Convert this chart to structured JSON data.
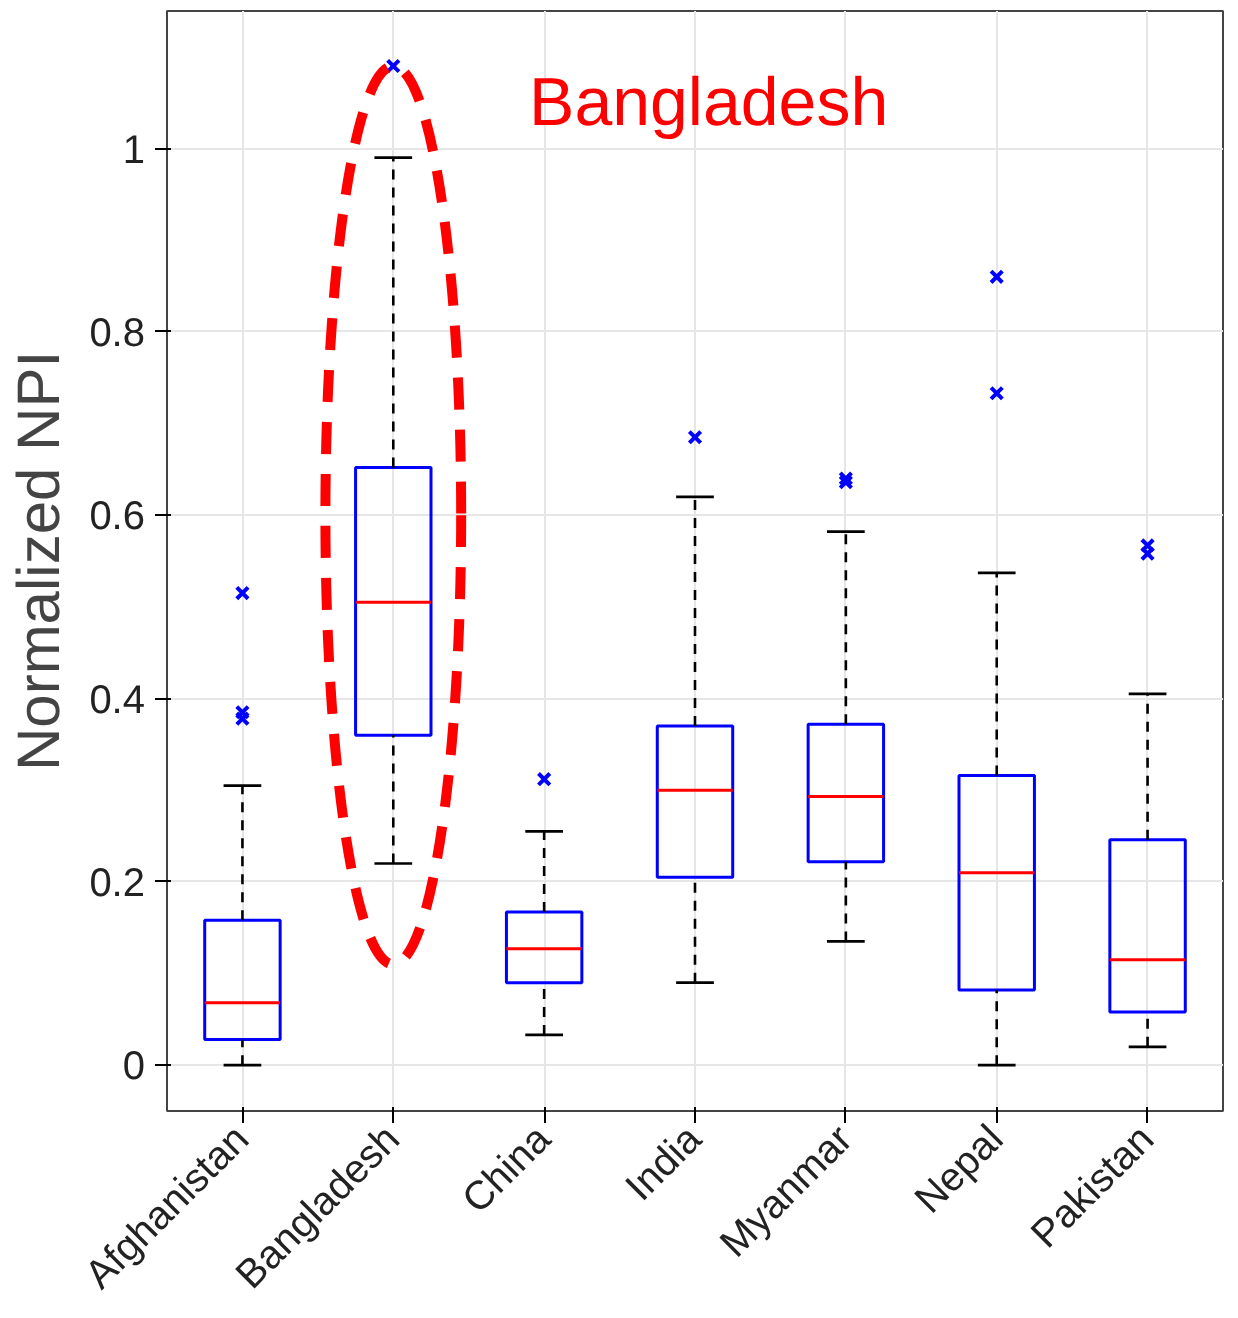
{
  "chart_data": {
    "type": "box",
    "ylabel": "Normalized NPI",
    "categories": [
      "Afghanistan",
      "Bangladesh",
      "China",
      "India",
      "Myanmar",
      "Nepal",
      "Pakistan"
    ],
    "series": [
      {
        "color": "#0000ff",
        "boxes": [
          {
            "low": 0,
            "q1": 0.028,
            "median": 0.068,
            "q3": 0.158,
            "high": 0.305,
            "outliers": [
              0.515,
              0.385,
              0.378
            ]
          },
          {
            "low": 0.22,
            "q1": 0.36,
            "median": 0.505,
            "q3": 0.652,
            "high": 0.99,
            "outliers": [
              1.09
            ]
          },
          {
            "low": 0.033,
            "q1": 0.09,
            "median": 0.127,
            "q3": 0.167,
            "high": 0.255,
            "outliers": [
              0.312
            ]
          },
          {
            "low": 0.09,
            "q1": 0.205,
            "median": 0.3,
            "q3": 0.37,
            "high": 0.62,
            "outliers": [
              0.685
            ]
          },
          {
            "low": 0.135,
            "q1": 0.222,
            "median": 0.293,
            "q3": 0.372,
            "high": 0.582,
            "outliers": [
              0.64,
              0.636
            ]
          },
          {
            "low": 0,
            "q1": 0.082,
            "median": 0.21,
            "q3": 0.316,
            "high": 0.537,
            "outliers": [
              0.86,
              0.733
            ]
          },
          {
            "low": 0.02,
            "q1": 0.058,
            "median": 0.115,
            "q3": 0.246,
            "high": 0.405,
            "outliers": [
              0.567,
              0.558
            ]
          }
        ]
      }
    ],
    "ylim": [
      -0.05,
      1.15
    ],
    "yticks": [
      0,
      0.2,
      0.4,
      0.6,
      0.8,
      1
    ],
    "grid": true,
    "marker": "cross",
    "annotations": [
      "Bangladesh"
    ]
  }
}
